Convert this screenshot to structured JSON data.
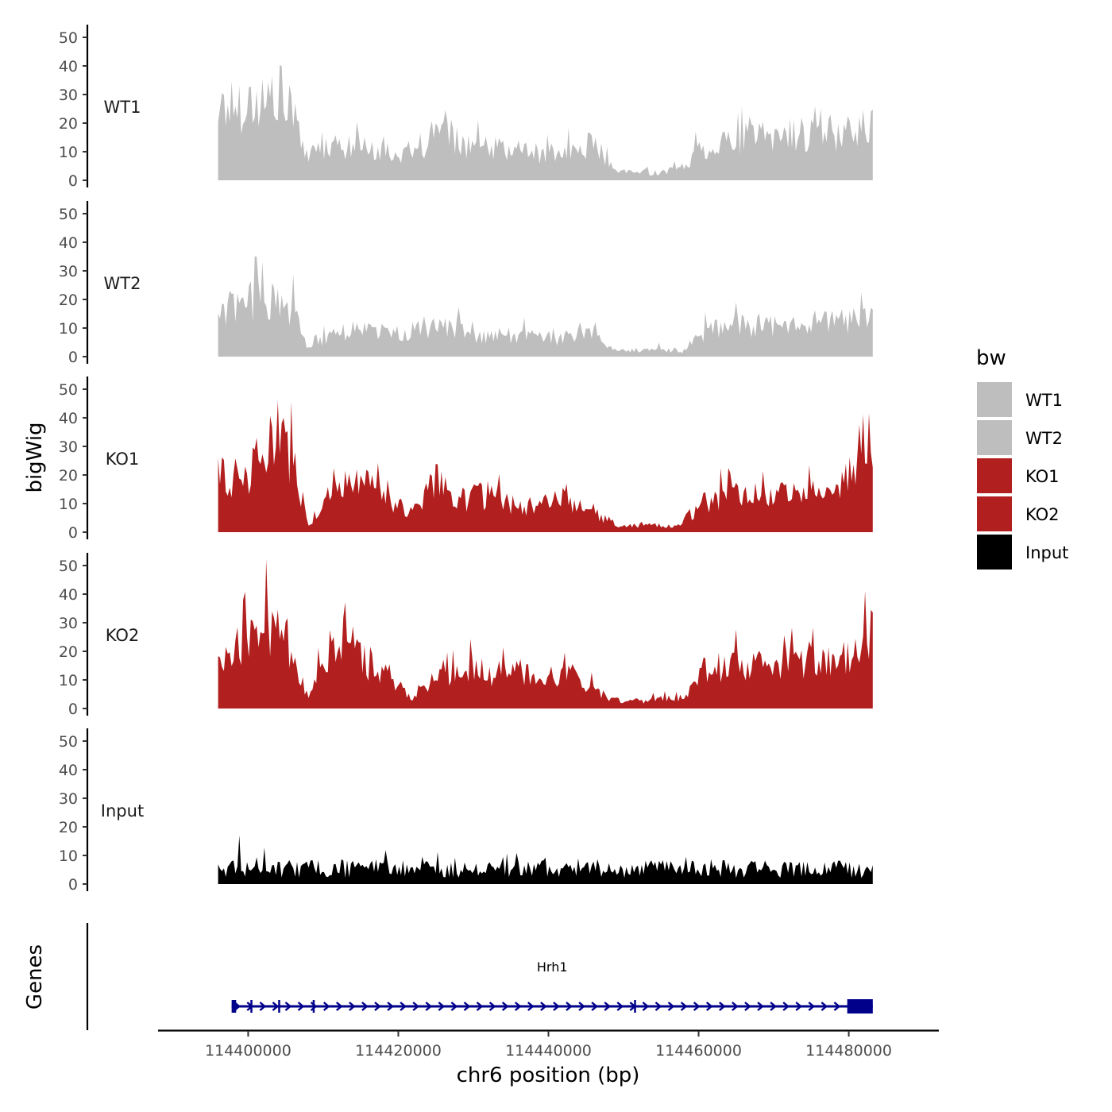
{
  "chart_data": {
    "type": "area",
    "ylabel": "bigWig",
    "xlabel": "chr6 position (bp)",
    "xlim": [
      114388000,
      114492000
    ],
    "data_range": [
      114396000,
      114483200
    ],
    "ylim": [
      0,
      55
    ],
    "y_ticks": [
      "0",
      "10",
      "20",
      "30",
      "40",
      "50"
    ],
    "x_ticks": [
      114400000,
      114420000,
      114440000,
      114460000,
      114480000
    ],
    "x_tick_labels": [
      "114400000",
      "114420000",
      "114440000",
      "114460000",
      "114480000"
    ],
    "grid": false,
    "legend": {
      "title": "bw",
      "position": "right"
    },
    "series": [
      {
        "name": "WT1",
        "color": "#bebebe",
        "profile": [
          [
            114396000,
            28
          ],
          [
            114402000,
            30
          ],
          [
            114404000,
            32
          ],
          [
            114406500,
            22
          ],
          [
            114408000,
            9
          ],
          [
            114412000,
            13
          ],
          [
            114418000,
            12
          ],
          [
            114420500,
            9
          ],
          [
            114422500,
            9
          ],
          [
            114426000,
            20
          ],
          [
            114428000,
            14
          ],
          [
            114432000,
            12
          ],
          [
            114436000,
            11
          ],
          [
            114440000,
            10
          ],
          [
            114444000,
            11
          ],
          [
            114446000,
            15
          ],
          [
            114447500,
            8
          ],
          [
            114449000,
            3
          ],
          [
            114452000,
            3
          ],
          [
            114455000,
            3
          ],
          [
            114458000,
            5
          ],
          [
            114460000,
            12
          ],
          [
            114464000,
            15
          ],
          [
            114470000,
            17
          ],
          [
            114478000,
            18
          ],
          [
            114483200,
            20
          ]
        ],
        "peak": {
          "x": 114404400,
          "y": 40
        }
      },
      {
        "name": "WT2",
        "color": "#bebebe",
        "profile": [
          [
            114396000,
            15
          ],
          [
            114400000,
            20
          ],
          [
            114402000,
            23
          ],
          [
            114404000,
            22
          ],
          [
            114406500,
            18
          ],
          [
            114408000,
            3
          ],
          [
            114412000,
            10
          ],
          [
            114418000,
            9
          ],
          [
            114426000,
            12
          ],
          [
            114430000,
            8
          ],
          [
            114436000,
            8
          ],
          [
            114442000,
            7
          ],
          [
            114446000,
            10
          ],
          [
            114448000,
            4
          ],
          [
            114450000,
            2
          ],
          [
            114454000,
            3
          ],
          [
            114458000,
            2
          ],
          [
            114460000,
            8
          ],
          [
            114464000,
            12
          ],
          [
            114470000,
            11
          ],
          [
            114476000,
            13
          ],
          [
            114483200,
            14
          ]
        ],
        "peak": {
          "x": 114401000,
          "y": 35
        }
      },
      {
        "name": "KO1",
        "color": "#b21f1f",
        "profile": [
          [
            114396000,
            20
          ],
          [
            114400000,
            22
          ],
          [
            114402500,
            30
          ],
          [
            114404500,
            38
          ],
          [
            114406500,
            20
          ],
          [
            114408000,
            3
          ],
          [
            114411000,
            15
          ],
          [
            114416000,
            19
          ],
          [
            114420000,
            10
          ],
          [
            114422500,
            8
          ],
          [
            114425500,
            22
          ],
          [
            114428000,
            12
          ],
          [
            114432000,
            14
          ],
          [
            114436000,
            9
          ],
          [
            114440000,
            12
          ],
          [
            114444000,
            12
          ],
          [
            114447500,
            5
          ],
          [
            114450000,
            2
          ],
          [
            114453000,
            3
          ],
          [
            114457000,
            2
          ],
          [
            114460000,
            10
          ],
          [
            114464000,
            15
          ],
          [
            114470000,
            14
          ],
          [
            114476000,
            17
          ],
          [
            114480000,
            20
          ],
          [
            114482500,
            30
          ],
          [
            114483200,
            18
          ]
        ],
        "peak": {
          "x": 114404000,
          "y": 46
        }
      },
      {
        "name": "KO2",
        "color": "#b21f1f",
        "profile": [
          [
            114396000,
            22
          ],
          [
            114400000,
            25
          ],
          [
            114402500,
            32
          ],
          [
            114404500,
            28
          ],
          [
            114406500,
            18
          ],
          [
            114408000,
            3
          ],
          [
            114411000,
            24
          ],
          [
            114414000,
            20
          ],
          [
            114418000,
            15
          ],
          [
            114422000,
            4
          ],
          [
            114424000,
            9
          ],
          [
            114426000,
            14
          ],
          [
            114432000,
            14
          ],
          [
            114438000,
            13
          ],
          [
            114442000,
            12
          ],
          [
            114446000,
            10
          ],
          [
            114448000,
            3
          ],
          [
            114452000,
            3
          ],
          [
            114458000,
            4
          ],
          [
            114461000,
            15
          ],
          [
            114465000,
            16
          ],
          [
            114470000,
            16
          ],
          [
            114476000,
            20
          ],
          [
            114480000,
            20
          ],
          [
            114483200,
            28
          ]
        ],
        "peak": {
          "x": 114402500,
          "y": 52
        }
      },
      {
        "name": "Input",
        "color": "#000000",
        "profile": [
          [
            114396000,
            7
          ],
          [
            114483200,
            7
          ]
        ],
        "peak": {
          "x": 114398800,
          "y": 17
        }
      }
    ],
    "gene_track": {
      "ylabel": "Genes",
      "gene": "Hrh1",
      "start": 114397800,
      "end": 114483200,
      "strand": "+",
      "color": "#00008b",
      "exons": [
        [
          114397800,
          114398400
        ],
        [
          114400300,
          114400380
        ],
        [
          114404000,
          114404100
        ],
        [
          114408600,
          114408680
        ],
        [
          114451400,
          114451480
        ],
        [
          114479800,
          114483200
        ]
      ]
    }
  }
}
